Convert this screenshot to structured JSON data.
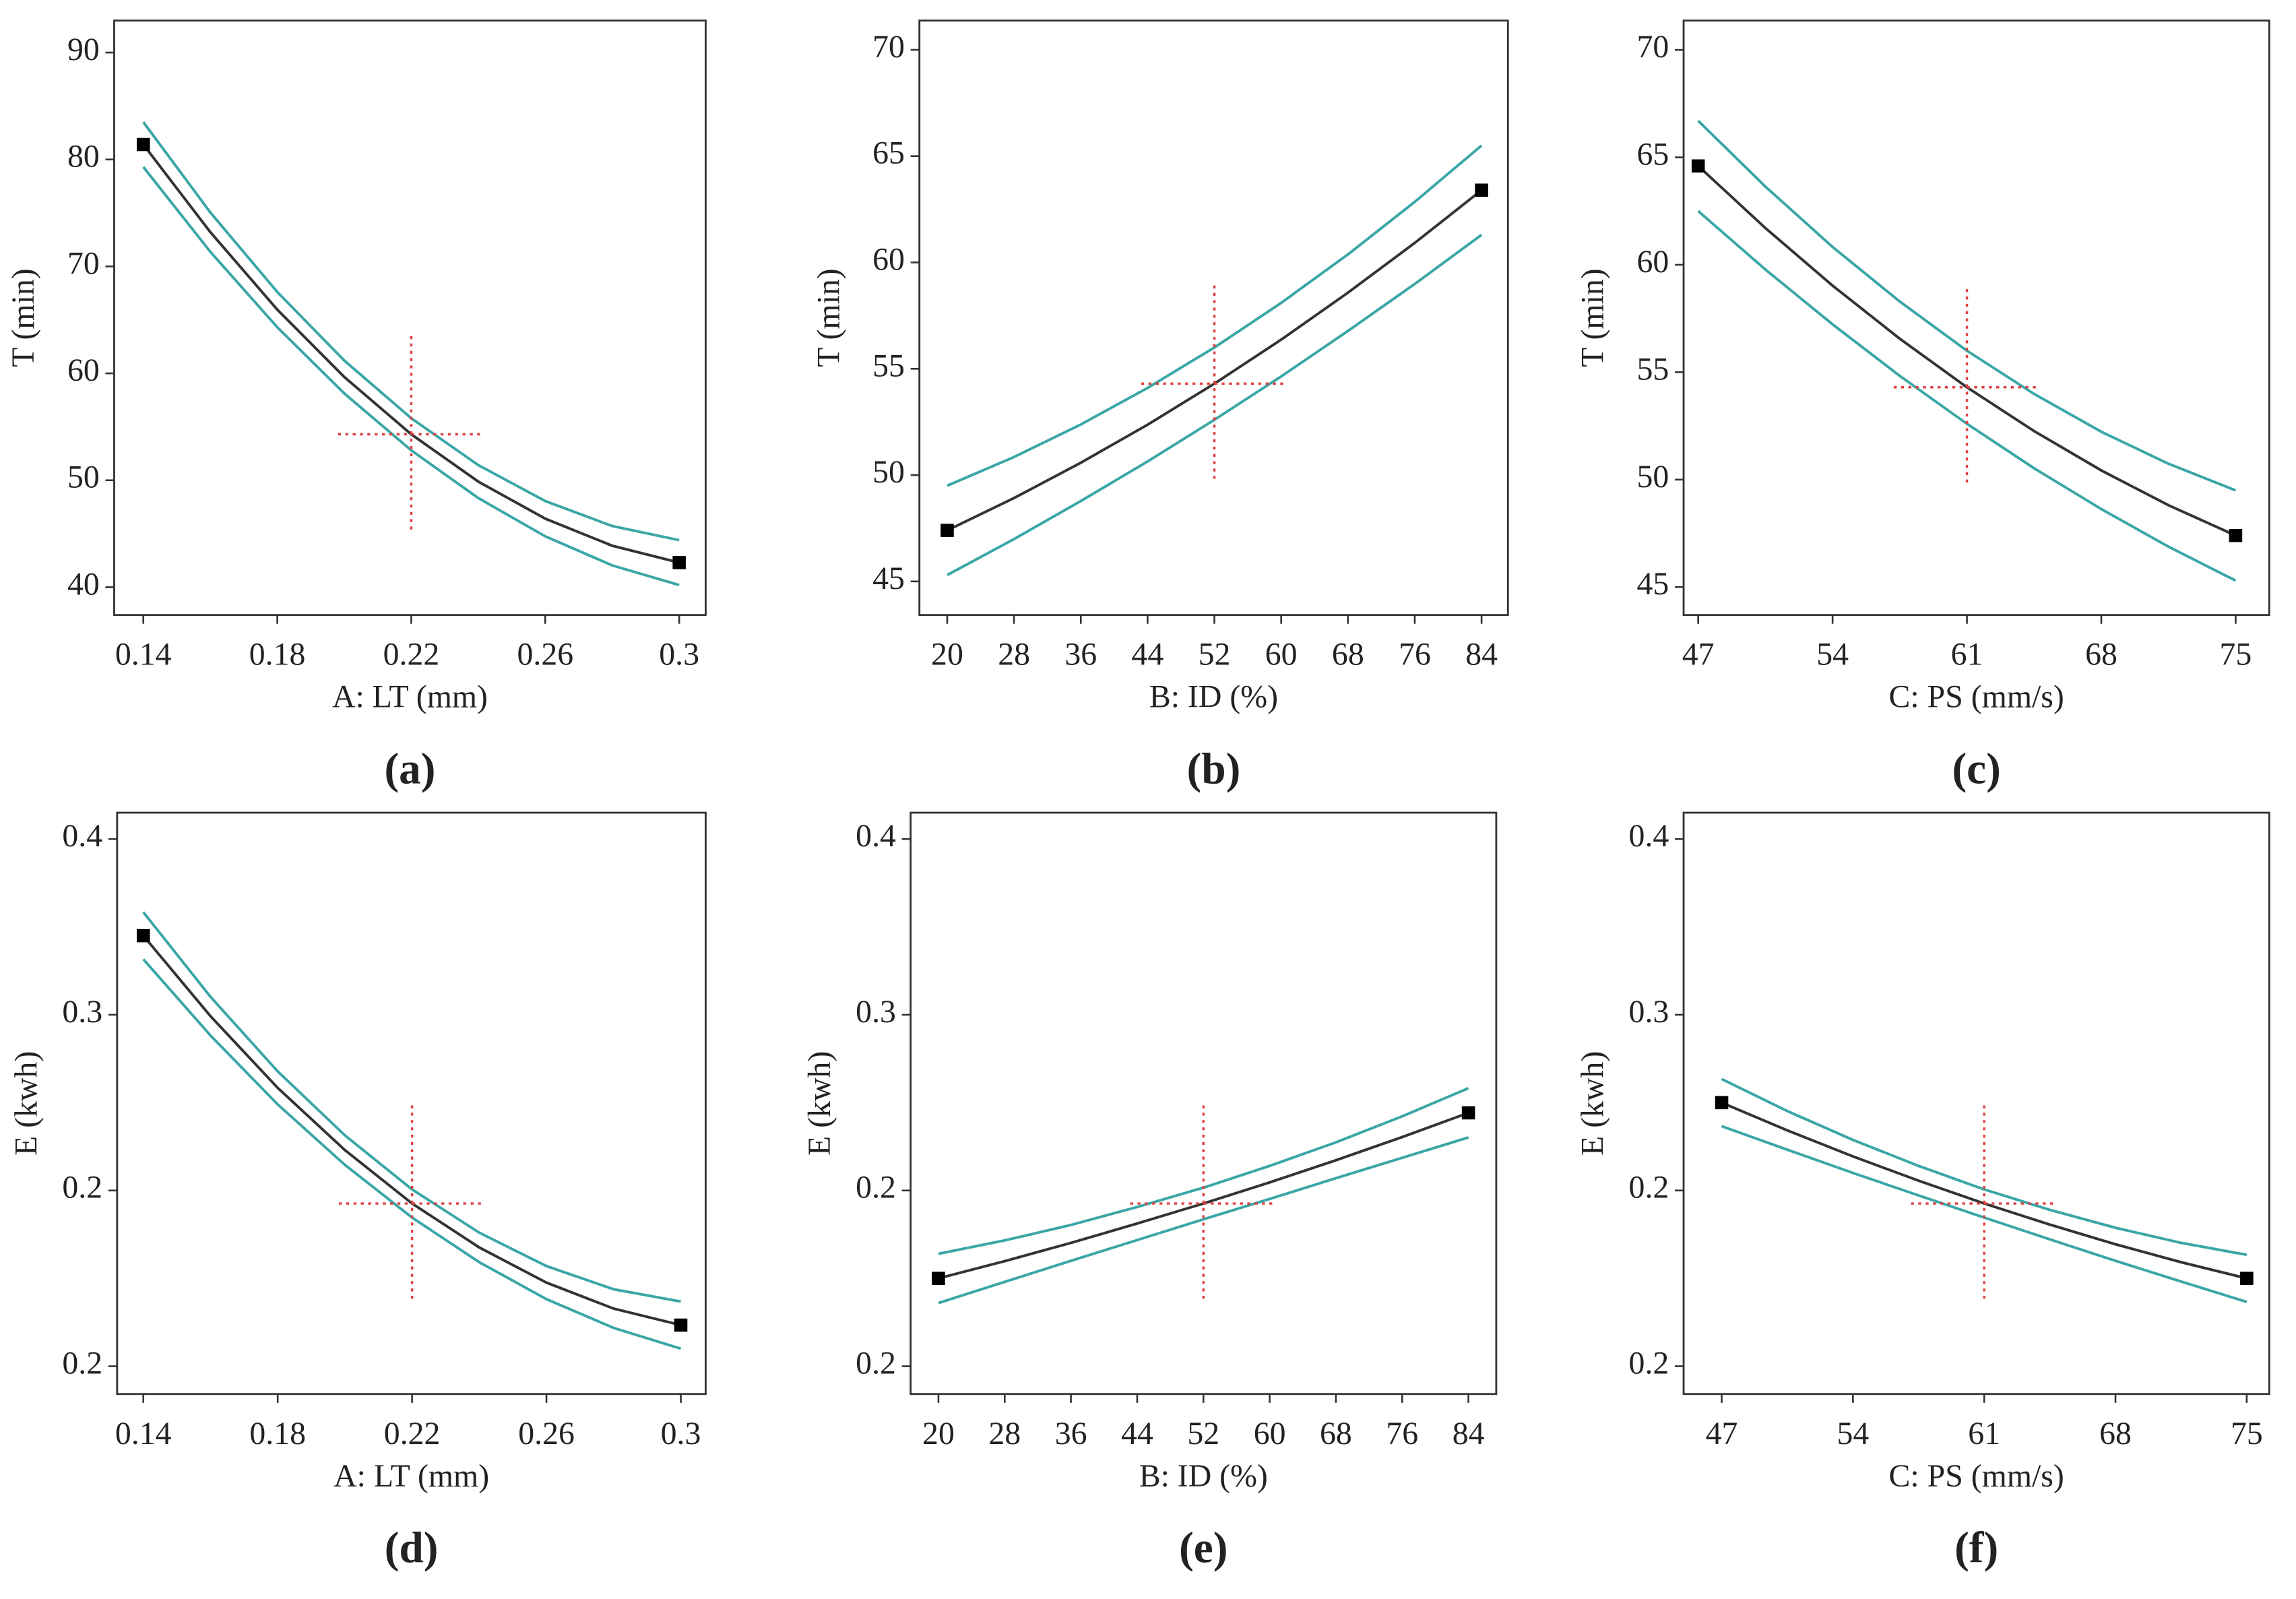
{
  "chart_data": [
    {
      "type": "line",
      "panel_label": "(a)",
      "xlabel": "A: LT (mm)",
      "ylabel": "T (min)",
      "x": [
        0.14,
        0.16,
        0.18,
        0.2,
        0.22,
        0.24,
        0.26,
        0.28,
        0.3
      ],
      "series": [
        {
          "color": "#3aa6a6",
          "values": [
            83.5,
            75.05,
            67.61,
            61.2,
            55.8,
            51.42,
            48.06,
            45.72,
            44.4
          ]
        },
        {
          "color": "#333333",
          "values": [
            81.4,
            73.21,
            65.96,
            59.66,
            54.3,
            49.88,
            46.41,
            43.88,
            42.3
          ]
        },
        {
          "color": "#3aa6a6",
          "values": [
            79.3,
            71.37,
            64.31,
            58.12,
            52.8,
            48.34,
            44.76,
            42.04,
            40.2
          ]
        }
      ],
      "center": [
        0.22,
        54.3
      ],
      "xlim": [
        0.1313,
        0.3079
      ],
      "ylim": [
        37.4,
        93.0
      ],
      "xticks": [
        0.14,
        0.18,
        0.22,
        0.26,
        0.3
      ],
      "yticks": [
        40,
        50,
        60,
        70,
        80,
        90
      ]
    },
    {
      "type": "line",
      "panel_label": "(b)",
      "xlabel": "B: ID (%)",
      "ylabel": "T (min)",
      "x": [
        20,
        28,
        36,
        44,
        52,
        60,
        68,
        76,
        84
      ],
      "series": [
        {
          "color": "#3aa6a6",
          "values": [
            49.5,
            50.85,
            52.38,
            54.1,
            56,
            58.1,
            60.38,
            62.85,
            65.5
          ]
        },
        {
          "color": "#333333",
          "values": [
            47.4,
            48.92,
            50.58,
            52.37,
            54.3,
            56.37,
            58.58,
            60.92,
            63.4
          ]
        },
        {
          "color": "#3aa6a6",
          "values": [
            45.3,
            46.99,
            48.78,
            50.64,
            52.6,
            54.64,
            56.78,
            58.99,
            61.3
          ]
        }
      ],
      "center": [
        52,
        54.3
      ],
      "xlim": [
        16.67,
        87.16
      ],
      "ylim": [
        43.42,
        71.38
      ],
      "xticks": [
        20,
        28,
        36,
        44,
        52,
        60,
        68,
        76,
        84
      ],
      "yticks": [
        45,
        50,
        55,
        60,
        65,
        70
      ]
    },
    {
      "type": "line",
      "panel_label": "(c)",
      "xlabel": "C: PS (mm/s)",
      "ylabel": "T (min)",
      "x": [
        47,
        50.5,
        54,
        57.5,
        61,
        64.5,
        68,
        71.5,
        75
      ],
      "series": [
        {
          "color": "#3aa6a6",
          "values": [
            66.7,
            63.64,
            60.83,
            58.29,
            56,
            53.99,
            52.23,
            50.74,
            49.5
          ]
        },
        {
          "color": "#333333",
          "values": [
            64.6,
            61.71,
            59.03,
            56.56,
            54.3,
            52.26,
            50.43,
            48.81,
            47.4
          ]
        },
        {
          "color": "#3aa6a6",
          "values": [
            62.5,
            59.78,
            57.23,
            54.83,
            52.6,
            50.53,
            48.63,
            46.88,
            45.3
          ]
        }
      ],
      "center": [
        61,
        54.3
      ],
      "xlim": [
        46.24,
        76.75
      ],
      "ylim": [
        43.7,
        71.37
      ],
      "xticks": [
        47,
        54,
        61,
        68,
        75
      ],
      "yticks": [
        45,
        50,
        55,
        60,
        65,
        70
      ]
    },
    {
      "type": "line",
      "panel_label": "(d)",
      "xlabel": "A: LT (mm)",
      "ylabel": "E (kwh)",
      "x": [
        0.14,
        0.16,
        0.18,
        0.2,
        0.22,
        0.24,
        0.26,
        0.28,
        0.3
      ],
      "series": [
        {
          "color": "#3aa6a6",
          "values": [
            0.3292,
            0.3051,
            0.2839,
            0.2657,
            0.2503,
            0.238,
            0.2285,
            0.2219,
            0.2184
          ]
        },
        {
          "color": "#333333",
          "values": [
            0.3225,
            0.2996,
            0.2792,
            0.2615,
            0.2463,
            0.2338,
            0.2238,
            0.2164,
            0.2117
          ]
        },
        {
          "color": "#3aa6a6",
          "values": [
            0.3158,
            0.2941,
            0.2745,
            0.2573,
            0.2423,
            0.2296,
            0.2191,
            0.2109,
            0.205
          ]
        }
      ],
      "center": [
        0.22,
        0.2463
      ],
      "xlim": [
        0.1322,
        0.3074
      ],
      "ylim": [
        0.1921,
        0.3575
      ],
      "xticks": [
        0.14,
        0.18,
        0.22,
        0.26,
        0.3
      ],
      "yticks": [
        0.2,
        {
          "value": 0.25,
          "label": "0.2"
        },
        0.3,
        {
          "value": 0.35,
          "label": "0.4"
        }
      ]
    },
    {
      "type": "line",
      "panel_label": "(e)",
      "xlabel": "B: ID (%)",
      "ylabel": "E (kwh)",
      "x": [
        20,
        28,
        36,
        44,
        52,
        60,
        68,
        76,
        84
      ],
      "series": [
        {
          "color": "#3aa6a6",
          "values": [
            0.232,
            0.2358,
            0.2402,
            0.2453,
            0.2508,
            0.257,
            0.2637,
            0.2711,
            0.2791
          ]
        },
        {
          "color": "#333333",
          "values": [
            0.225,
            0.2299,
            0.2351,
            0.2406,
            0.2463,
            0.2523,
            0.2586,
            0.2652,
            0.2721
          ]
        },
        {
          "color": "#3aa6a6",
          "values": [
            0.218,
            0.224,
            0.23,
            0.2359,
            0.2418,
            0.2476,
            0.2535,
            0.2593,
            0.2651
          ]
        }
      ],
      "center": [
        52,
        0.2463
      ],
      "xlim": [
        16.64,
        87.36
      ],
      "ylim": [
        0.1921,
        0.3575
      ],
      "xticks": [
        20,
        28,
        36,
        44,
        52,
        60,
        68,
        76,
        84
      ],
      "yticks": [
        0.2,
        {
          "value": 0.25,
          "label": "0.2"
        },
        0.3,
        {
          "value": 0.35,
          "label": "0.4"
        }
      ]
    },
    {
      "type": "line",
      "panel_label": "(f)",
      "xlabel": "C: PS (mm/s)",
      "ylabel": "E (kwh)",
      "x": [
        47,
        50.5,
        54,
        57.5,
        61,
        64.5,
        68,
        71.5,
        75
      ],
      "series": [
        {
          "color": "#3aa6a6",
          "values": [
            0.2817,
            0.2726,
            0.2644,
            0.257,
            0.2503,
            0.2445,
            0.2394,
            0.2351,
            0.2317
          ]
        },
        {
          "color": "#333333",
          "values": [
            0.275,
            0.2671,
            0.2597,
            0.2528,
            0.2463,
            0.2403,
            0.2347,
            0.2296,
            0.225
          ]
        },
        {
          "color": "#3aa6a6",
          "values": [
            0.2683,
            0.2616,
            0.255,
            0.2486,
            0.2423,
            0.2361,
            0.23,
            0.2241,
            0.2183
          ]
        }
      ],
      "center": [
        61,
        0.2463
      ],
      "xlim": [
        44.97,
        76.2
      ],
      "ylim": [
        0.1921,
        0.3575
      ],
      "xticks": [
        47,
        54,
        61,
        68,
        75
      ],
      "yticks": [
        0.2,
        {
          "value": 0.25,
          "label": "0.2"
        },
        0.3,
        {
          "value": 0.35,
          "label": "0.4"
        }
      ]
    }
  ]
}
